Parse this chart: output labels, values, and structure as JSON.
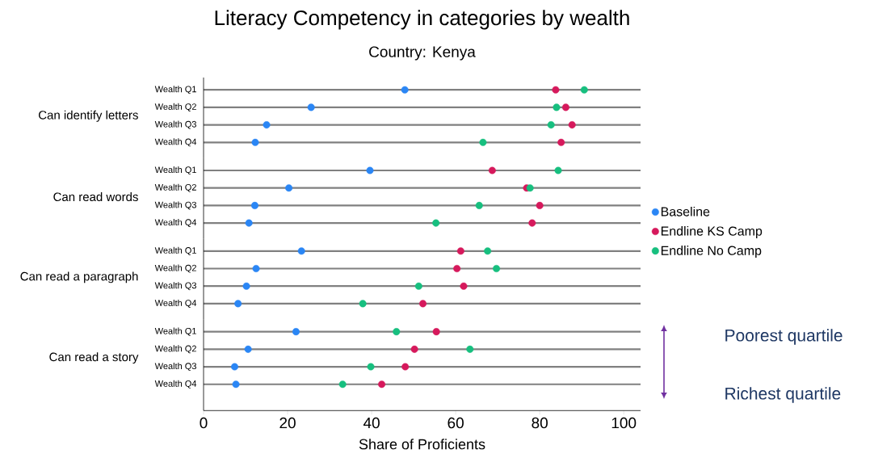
{
  "chart_data": [
    {
      "type": "scatter",
      "orientation": "horizontal",
      "title": "Literacy Competency in categories by wealth",
      "subtitle": "Country: Kenya",
      "ylabel": "Can identify letters",
      "categories": [
        "Wealth Q1",
        "Wealth Q2",
        "Wealth Q3",
        "Wealth Q4"
      ],
      "xlim": [
        0,
        104
      ],
      "xticks": [
        0,
        20,
        40,
        60,
        80,
        100
      ],
      "tick_labels": "y",
      "grid": "y",
      "marker": "circle",
      "series": [
        {
          "color": "#2a86f5",
          "values": [
            47.9,
            25.6,
            15.0,
            12.3
          ]
        },
        {
          "color": "#d6195c",
          "values": [
            83.8,
            86.2,
            87.7,
            85.1
          ]
        },
        {
          "color": "#17bf7f",
          "values": [
            90.6,
            84.0,
            82.7,
            66.5
          ]
        }
      ]
    },
    {
      "type": "scatter",
      "orientation": "horizontal",
      "ylabel": "Can read words",
      "categories": [
        "Wealth Q1",
        "Wealth Q2",
        "Wealth Q3",
        "Wealth Q4"
      ],
      "xlim": [
        0,
        104
      ],
      "xticks": [
        0,
        20,
        40,
        60,
        80,
        100
      ],
      "tick_labels": "y",
      "grid": "y",
      "marker": "circle",
      "legend": "right",
      "series": [
        {
          "name": "Baseline",
          "color": "#2a86f5",
          "values": [
            39.6,
            20.3,
            12.2,
            10.8
          ]
        },
        {
          "name": "Endline KS Camp",
          "color": "#d6195c",
          "values": [
            68.7,
            76.9,
            80.0,
            78.2
          ]
        },
        {
          "name": "Endline No Camp",
          "color": "#17bf7f",
          "values": [
            84.4,
            77.7,
            65.6,
            55.3
          ]
        }
      ]
    },
    {
      "type": "scatter",
      "orientation": "horizontal",
      "ylabel": "Can read a paragraph",
      "categories": [
        "Wealth Q1",
        "Wealth Q2",
        "Wealth Q3",
        "Wealth Q4"
      ],
      "xlim": [
        0,
        104
      ],
      "xticks": [
        0,
        20,
        40,
        60,
        80,
        100
      ],
      "tick_labels": "y",
      "grid": "y",
      "marker": "circle",
      "series": [
        {
          "color": "#2a86f5",
          "values": [
            23.3,
            12.5,
            10.2,
            8.2
          ]
        },
        {
          "color": "#d6195c",
          "values": [
            61.2,
            60.3,
            61.9,
            52.2
          ]
        },
        {
          "color": "#17bf7f",
          "values": [
            67.6,
            69.7,
            51.2,
            37.9
          ]
        }
      ]
    },
    {
      "type": "scatter",
      "orientation": "horizontal",
      "ylabel": "Can read a story",
      "xlabel": "Share of Proficients",
      "categories": [
        "Wealth Q1",
        "Wealth Q2",
        "Wealth Q3",
        "Wealth Q4"
      ],
      "xlim": [
        0,
        104
      ],
      "xticks": [
        0,
        20,
        40,
        60,
        80,
        100
      ],
      "grid": "y",
      "marker": "circle",
      "annotations": [
        "Poorest quartile",
        "Richest quartile"
      ],
      "series": [
        {
          "color": "#2a86f5",
          "values": [
            22.0,
            10.6,
            7.4,
            7.7
          ]
        },
        {
          "color": "#d6195c",
          "values": [
            55.4,
            50.2,
            48.0,
            42.4
          ]
        },
        {
          "color": "#17bf7f",
          "values": [
            45.9,
            63.4,
            39.8,
            33.1
          ]
        }
      ]
    }
  ]
}
